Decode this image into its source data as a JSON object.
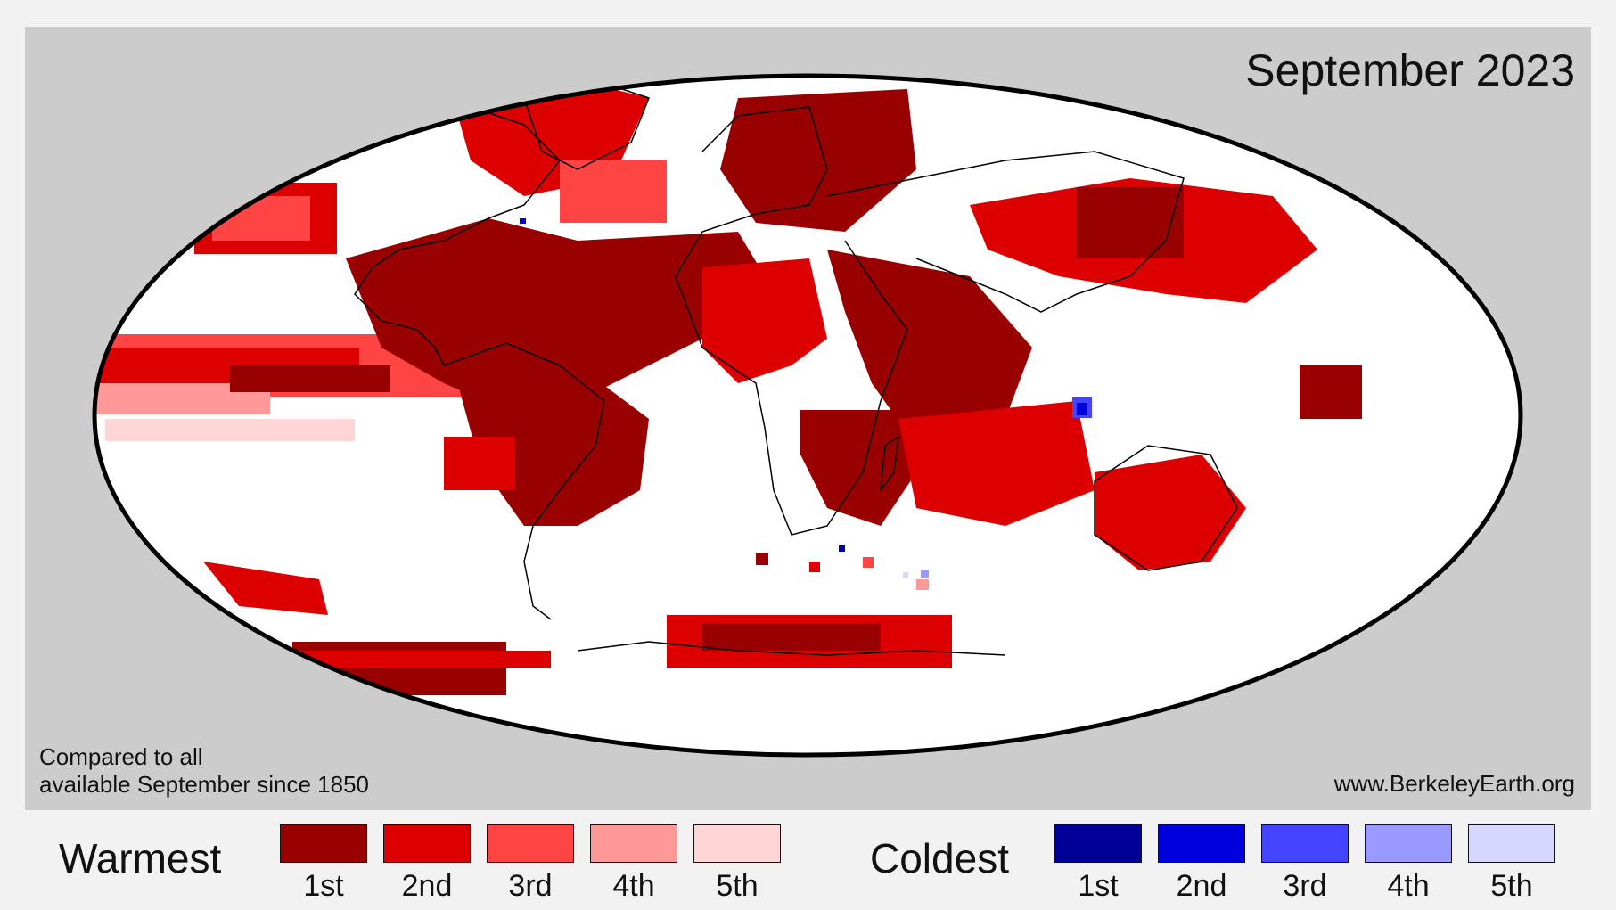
{
  "map": {
    "title": "September 2023",
    "compare_note": {
      "line1": "Compared to all",
      "line2": "available September since 1850"
    },
    "source": "www.BerkeleyEarth.org",
    "projection": "mollweide",
    "ocean_land_background": "#ffffff",
    "panel_background": "#cccccc",
    "outline_color": "#000000"
  },
  "legend": {
    "warm_heading": "Warmest",
    "cold_heading": "Coldest",
    "warm": [
      {
        "label": "1st",
        "color": "#990000"
      },
      {
        "label": "2nd",
        "color": "#dd0000"
      },
      {
        "label": "3rd",
        "color": "#ff4444"
      },
      {
        "label": "4th",
        "color": "#ff9999"
      },
      {
        "label": "5th",
        "color": "#ffd6d6"
      }
    ],
    "cold": [
      {
        "label": "1st",
        "color": "#000099"
      },
      {
        "label": "2nd",
        "color": "#0000dd"
      },
      {
        "label": "3rd",
        "color": "#4444ff"
      },
      {
        "label": "4th",
        "color": "#9999ff"
      },
      {
        "label": "5th",
        "color": "#d6d6ff"
      }
    ]
  }
}
